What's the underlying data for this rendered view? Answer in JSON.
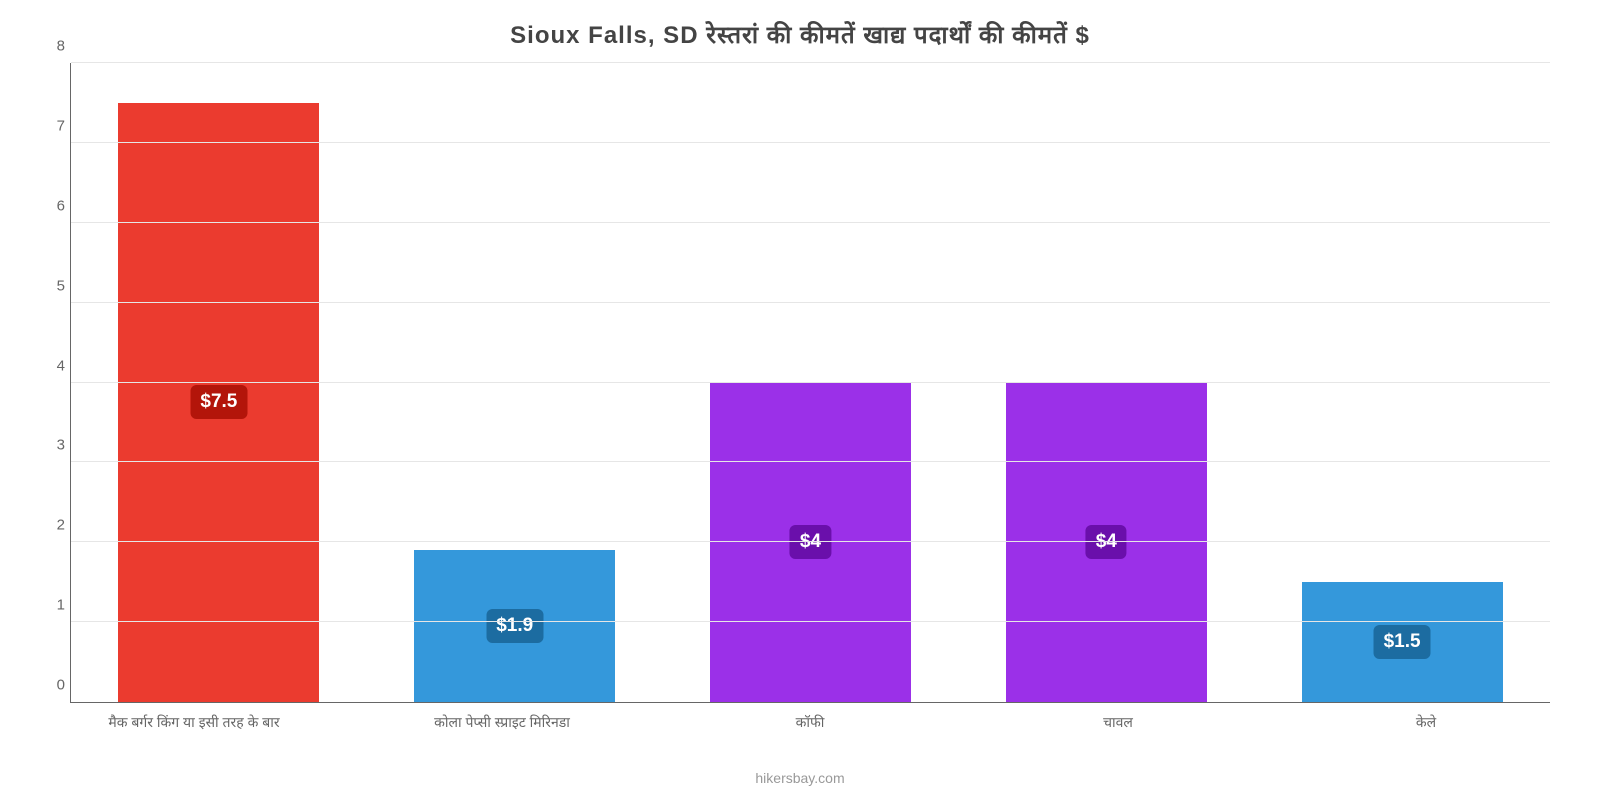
{
  "chart": {
    "type": "bar",
    "title": "Sioux Falls, SD रेस्तरां की कीमतें खाद्य पदार्थों की कीमतें $",
    "title_fontsize": 24,
    "title_color": "#444444",
    "background_color": "#ffffff",
    "grid_color": "#e6e6e6",
    "ymax": 8,
    "ytick_step": 1,
    "y_ticks": [
      0,
      1,
      2,
      3,
      4,
      5,
      6,
      7,
      8
    ],
    "axis_label_fontsize": 15,
    "axis_label_color": "#666666",
    "bar_width_pct": 68,
    "bar_label_fontsize": 19,
    "badge_top_pct": 50,
    "x_label_fontsize": 14,
    "x_label_color": "#666666",
    "categories": [
      "मैक बर्गर किंग या इसी तरह के बार",
      "कोला पेप्सी स्प्राइट मिरिनडा",
      "कॉफी",
      "चावल",
      "केले"
    ],
    "values": [
      7.5,
      1.9,
      4,
      4,
      1.5
    ],
    "bar_colors": [
      "#eb3b2f",
      "#3498db",
      "#9b30e8",
      "#9b30e8",
      "#3498db"
    ],
    "badge_colors": [
      "#b3150a",
      "#1c6ca1",
      "#6a0fab",
      "#6a0fab",
      "#1c6ca1"
    ],
    "badge_labels": [
      "$7.5",
      "$1.9",
      "$4",
      "$4",
      "$1.5"
    ],
    "footer": "hikersbay.com",
    "footer_color": "#999999"
  }
}
